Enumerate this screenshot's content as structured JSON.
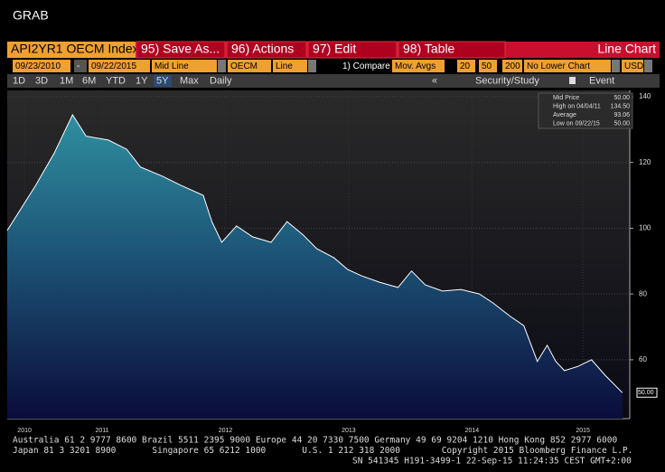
{
  "header": {
    "title": "GRAB"
  },
  "toolbar": {
    "security": "API2YR1 OECM Index",
    "buttons": [
      "95) Save As...",
      "96) Actions",
      "97) Edit",
      "98) Table"
    ],
    "chart_type": "Line Chart"
  },
  "settings": {
    "start": "09/23/2010",
    "sep": "-",
    "end": "09/22/2015",
    "field": "Mid Line",
    "source": "OECM",
    "style": "Line",
    "compare": "1) Compare",
    "mov": "Mov. Avgs",
    "periods": [
      "20",
      "50",
      "200"
    ],
    "lower": "No Lower Chart",
    "currency": "USD"
  },
  "ranges": {
    "items": [
      "1D",
      "3D",
      "1M",
      "6M",
      "YTD",
      "1Y",
      "5Y",
      "Max"
    ],
    "freq": "Daily",
    "study": "Security/Study",
    "event": "Event"
  },
  "chart_data": {
    "type": "area-line",
    "x": [
      2010.73,
      2010.96,
      2011.11,
      2011.26,
      2011.37,
      2011.55,
      2011.7,
      2011.81,
      2011.99,
      2012.14,
      2012.32,
      2012.39,
      2012.47,
      2012.59,
      2012.72,
      2012.87,
      2013.0,
      2013.13,
      2013.24,
      2013.38,
      2013.49,
      2013.6,
      2013.75,
      2013.9,
      2014.01,
      2014.12,
      2014.26,
      2014.41,
      2014.56,
      2014.67,
      2014.81,
      2014.92,
      2015.03,
      2015.11,
      2015.18,
      2015.25,
      2015.36,
      2015.47,
      2015.58,
      2015.72
    ],
    "series": [
      {
        "name": "Mid Price",
        "color": "#ffffff",
        "values": [
          99.3,
          113,
          122.7,
          134.5,
          128,
          126.8,
          124,
          118.6,
          115.8,
          113,
          110,
          102,
          95.7,
          100.7,
          97.4,
          95.7,
          102,
          98,
          93.8,
          91,
          87.5,
          85.6,
          83.6,
          82,
          87,
          82.8,
          80.9,
          81.4,
          80,
          77.3,
          73.2,
          70.4,
          59.5,
          64.4,
          59.5,
          56.7,
          58,
          60,
          55.3,
          50
        ]
      }
    ],
    "stats": [
      {
        "label": "Mid Price",
        "value": "50.00"
      },
      {
        "label": "High on 04/04/11",
        "value": "134.50"
      },
      {
        "label": "Average",
        "value": "93.06"
      },
      {
        "label": "Low on 09/22/15",
        "value": "50.00"
      }
    ],
    "xlim": [
      2010.73,
      2015.78
    ],
    "xticks": [
      {
        "value": 2010.87,
        "label": "2010"
      },
      {
        "value": 2011.5,
        "label": "2011"
      },
      {
        "value": 2012.5,
        "label": "2012"
      },
      {
        "value": 2013.5,
        "label": "2013"
      },
      {
        "value": 2014.5,
        "label": "2014"
      },
      {
        "value": 2015.4,
        "label": "2015"
      }
    ],
    "ylim": [
      42.1,
      141.9
    ],
    "yticks": [
      60,
      80,
      100,
      120,
      140
    ],
    "grid": true
  },
  "footer": {
    "lines": [
      "Australia 61 2 9777 8600 Brazil 5511 2395 9000 Europe 44 20 7330 7500 Germany 49 69 9204 1210 Hong Kong 852 2977 6000",
      "Japan 81 3 3201 8900       Singapore 65 6212 1000       U.S. 1 212 318 2000        Copyright 2015 Bloomberg Finance L.P.",
      "SN 541345 H191-3499-1 22-Sep-15 11:24:35 CEST GMT+2:00"
    ]
  }
}
